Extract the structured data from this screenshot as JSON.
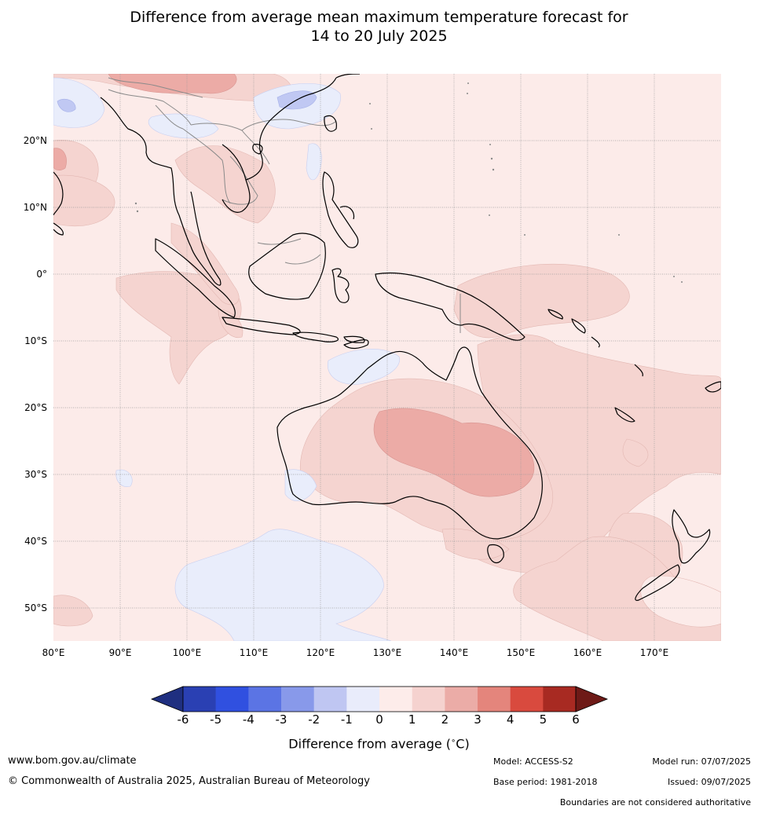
{
  "title": {
    "line1": "Difference from average mean maximum temperature forecast for",
    "line2": "14 to 20 July 2025"
  },
  "map": {
    "lat_labels": [
      "20°N",
      "10°N",
      "0°",
      "10°S",
      "20°S",
      "30°S",
      "40°S",
      "50°S"
    ],
    "lon_labels": [
      "80°E",
      "90°E",
      "100°E",
      "110°E",
      "120°E",
      "130°E",
      "140°E",
      "150°E",
      "160°E",
      "170°E"
    ],
    "extent": {
      "lon": [
        80,
        180
      ],
      "lat": [
        -55,
        30
      ]
    },
    "colors": {
      "0_to_1": "#fcebe9",
      "1_to_2": "#f5d4d0",
      "2_to_3": "#ecaba6",
      "minus1_to_0": "#e9edfb",
      "minus2_to_minus1": "#c0c8f3",
      "coast": "#000000",
      "boundary": "#8a8a8a",
      "grid": "#9a9a9a"
    }
  },
  "colorbar": {
    "ticks": [
      "-6",
      "-5",
      "-4",
      "-3",
      "-2",
      "-1",
      "0",
      "1",
      "2",
      "3",
      "4",
      "5",
      "6"
    ],
    "colors": [
      "#1f2f80",
      "#2a40b3",
      "#3050e0",
      "#5b74e4",
      "#8899ea",
      "#bfc6f2",
      "#e9ecfb",
      "#fdecea",
      "#f5d2cf",
      "#ebaca7",
      "#e4857c",
      "#d94a3e",
      "#a82a22",
      "#6e1a17"
    ],
    "label": "Difference from average (°C)",
    "label_text": "Difference from average (",
    "label_unit": "C)"
  },
  "footer": {
    "website": "www.bom.gov.au/climate",
    "copyright": "© Commonwealth of Australia 2025, Australian Bureau of Meteorology",
    "model": "Model: ACCESS-S2",
    "model_run": "Model run: 07/07/2025",
    "base_period": "Base period: 1981-2018",
    "issued": "Issued: 09/07/2025",
    "disclaimer": "Boundaries are not considered authoritative"
  }
}
